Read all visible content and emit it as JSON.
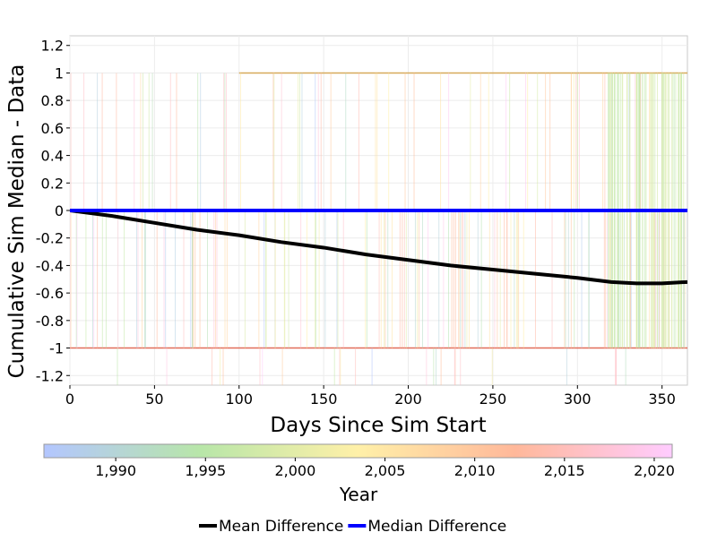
{
  "chart_data": {
    "type": "line",
    "xlabel": "Days Since Sim Start",
    "ylabel": "Cumulative Sim Median - Data",
    "xlim": [
      0,
      365
    ],
    "ylim": [
      -1.27,
      1.27
    ],
    "x_ticks": [
      0,
      50,
      100,
      150,
      200,
      250,
      300,
      350
    ],
    "y_ticks": [
      1.2,
      1,
      0.8,
      0.6,
      0.4,
      0.2,
      0,
      -0.2,
      -0.4,
      -0.6,
      -0.8,
      -1,
      -1.2
    ],
    "x_tick_labels": [
      "0",
      "50",
      "100",
      "150",
      "200",
      "250",
      "300",
      "350"
    ],
    "y_tick_labels": [
      "1.2",
      "1",
      "0.8",
      "0.6",
      "0.4",
      "0.2",
      "0",
      "-0.2",
      "-0.4",
      "-0.6",
      "-0.8",
      "-1",
      "-1.2"
    ],
    "grid": true,
    "legend_placement": "bottom",
    "series": [
      {
        "name": "Mean Difference",
        "color": "#000000",
        "x": [
          0,
          25,
          50,
          75,
          100,
          125,
          150,
          175,
          200,
          225,
          250,
          275,
          300,
          320,
          335,
          350,
          365
        ],
        "y": [
          0,
          -0.04,
          -0.09,
          -0.14,
          -0.18,
          -0.23,
          -0.27,
          -0.32,
          -0.36,
          -0.4,
          -0.43,
          -0.46,
          -0.49,
          -0.52,
          -0.53,
          -0.53,
          -0.52
        ]
      },
      {
        "name": "Median Difference",
        "color": "#0000ff",
        "x": [
          0,
          365
        ],
        "y": [
          0,
          0
        ]
      }
    ],
    "colorbar": {
      "label": "Year",
      "range": [
        1986,
        2021
      ],
      "ticks": [
        1990,
        1995,
        2000,
        2005,
        2010,
        2015,
        2020
      ],
      "tick_labels": [
        "1,990",
        "1,995",
        "2,000",
        "2,005",
        "2,010",
        "2,015",
        "2,020"
      ],
      "colors": [
        "#b3c6ff",
        "#b8e6a8",
        "#fff0a8",
        "#ffb89a",
        "#ffccff"
      ]
    }
  }
}
